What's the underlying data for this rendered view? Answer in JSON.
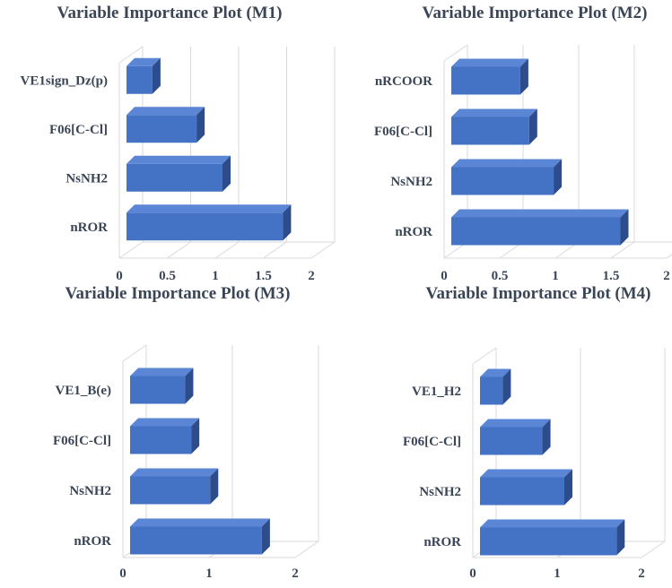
{
  "colors": {
    "bar_front": "#4472c4",
    "bar_top": "#5b86d6",
    "bar_side": "#2c4c8c",
    "text": "#3a4556"
  },
  "chart_data": [
    {
      "type": "bar",
      "orientation": "horizontal",
      "title": "Variable Importance Plot (M1)",
      "categories": [
        "VE1sign_Dz(p)",
        "F06[C-Cl]",
        "NsNH2",
        "nROR"
      ],
      "values": [
        0.27,
        0.73,
        1.0,
        1.63
      ],
      "xlim": [
        0,
        2
      ],
      "xticks": [
        "0",
        "0.5",
        "1",
        "1.5",
        "2"
      ],
      "grid": true
    },
    {
      "type": "bar",
      "orientation": "horizontal",
      "title": "Variable Importance Plot (M2)",
      "categories": [
        "nRCOOR",
        "F06[C-Cl]",
        "NsNH2",
        "nROR"
      ],
      "values": [
        0.62,
        0.7,
        0.92,
        1.52
      ],
      "xlim": [
        0,
        2
      ],
      "xticks": [
        "0",
        "0.5",
        "1",
        "1.5",
        "2"
      ],
      "grid": true
    },
    {
      "type": "bar",
      "orientation": "horizontal",
      "title": "Variable Importance Plot (M3)",
      "categories": [
        "VE1_B(e)",
        "F06[C-Cl]",
        "NsNH2",
        "nROR"
      ],
      "values": [
        0.64,
        0.71,
        0.93,
        1.53
      ],
      "xlim": [
        0,
        2
      ],
      "xticks": [
        "0",
        "1",
        "2"
      ],
      "grid": true
    },
    {
      "type": "bar",
      "orientation": "horizontal",
      "title": "Variable Importance Plot (M4)",
      "categories": [
        "VE1_H2",
        "F06[C-Cl]",
        "NsNH2",
        "nROR"
      ],
      "values": [
        0.27,
        0.74,
        1.0,
        1.62
      ],
      "xlim": [
        0,
        2
      ],
      "xticks": [
        "0",
        "1",
        "2"
      ],
      "grid": true
    }
  ]
}
